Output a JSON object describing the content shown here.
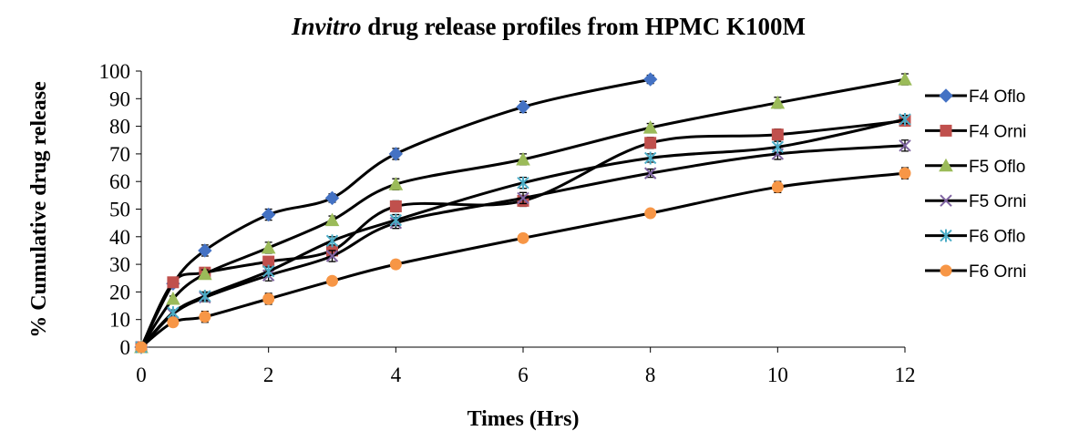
{
  "chart_data": {
    "type": "line",
    "title_italic": "Invitro",
    "title_rest": " drug release profiles from HPMC K100M",
    "xlabel": "Times (Hrs)",
    "ylabel": "% Cumulative drug release",
    "xlim": [
      0,
      12
    ],
    "ylim": [
      0,
      100
    ],
    "xticks": [
      0,
      2,
      4,
      6,
      8,
      10,
      12
    ],
    "yticks": [
      0,
      10,
      20,
      30,
      40,
      50,
      60,
      70,
      80,
      90,
      100
    ],
    "grid": false,
    "legend_position": "right",
    "series": [
      {
        "name": "F4 Oflo",
        "color": "#4472C4",
        "marker": "diamond",
        "x": [
          0,
          0.5,
          1,
          2,
          3,
          4,
          6,
          8
        ],
        "y": [
          0,
          23,
          35,
          48,
          54,
          70,
          87,
          97
        ],
        "err": [
          0,
          1,
          2,
          2,
          1.5,
          2,
          2,
          1.5
        ]
      },
      {
        "name": "F4 Orni",
        "color": "#C0504D",
        "marker": "square",
        "x": [
          0,
          0.5,
          1,
          2,
          3,
          4,
          6,
          8,
          10,
          12
        ],
        "y": [
          0,
          23.5,
          27,
          31,
          35,
          51,
          53,
          74,
          77,
          82
        ],
        "err": [
          0,
          1,
          1.5,
          1.5,
          1.5,
          2,
          2,
          2,
          2,
          1.5
        ]
      },
      {
        "name": "F5 Oflo",
        "color": "#9BBB59",
        "marker": "triangle",
        "x": [
          0,
          0.5,
          1,
          2,
          3,
          4,
          6,
          8,
          10,
          12
        ],
        "y": [
          0,
          17.5,
          26.5,
          36,
          46,
          59,
          68,
          79.5,
          88.5,
          97
        ],
        "err": [
          0,
          1,
          1.5,
          2,
          1.5,
          2,
          2,
          1.5,
          2,
          2
        ]
      },
      {
        "name": "F5 Orni",
        "color": "#8064A2",
        "marker": "x",
        "x": [
          0,
          0.5,
          1,
          2,
          3,
          4,
          6,
          8,
          10,
          12
        ],
        "y": [
          0,
          12,
          18,
          26,
          33,
          45,
          54,
          63,
          70,
          73
        ],
        "err": [
          0,
          1,
          1.5,
          2,
          2,
          2,
          2,
          1.5,
          2,
          2
        ]
      },
      {
        "name": "F6 Oflo",
        "color": "#4BACC6",
        "marker": "star",
        "x": [
          0,
          0.5,
          1,
          2,
          3,
          4,
          6,
          8,
          10,
          12
        ],
        "y": [
          0,
          12.5,
          18.5,
          27.5,
          38.5,
          46,
          59.5,
          68.5,
          72.5,
          82.5
        ],
        "err": [
          0,
          1,
          1.5,
          1.5,
          1.5,
          2,
          2,
          1.5,
          2,
          1.5
        ]
      },
      {
        "name": "F6 Orni",
        "color": "#F79646",
        "marker": "circle",
        "x": [
          0,
          0.5,
          1,
          2,
          3,
          4,
          6,
          8,
          10,
          12
        ],
        "y": [
          0,
          9,
          11,
          17.5,
          24,
          30,
          39.5,
          48.5,
          58,
          63
        ],
        "err": [
          0,
          1,
          2,
          2,
          1,
          1.5,
          1.5,
          1,
          2,
          2
        ]
      }
    ]
  }
}
